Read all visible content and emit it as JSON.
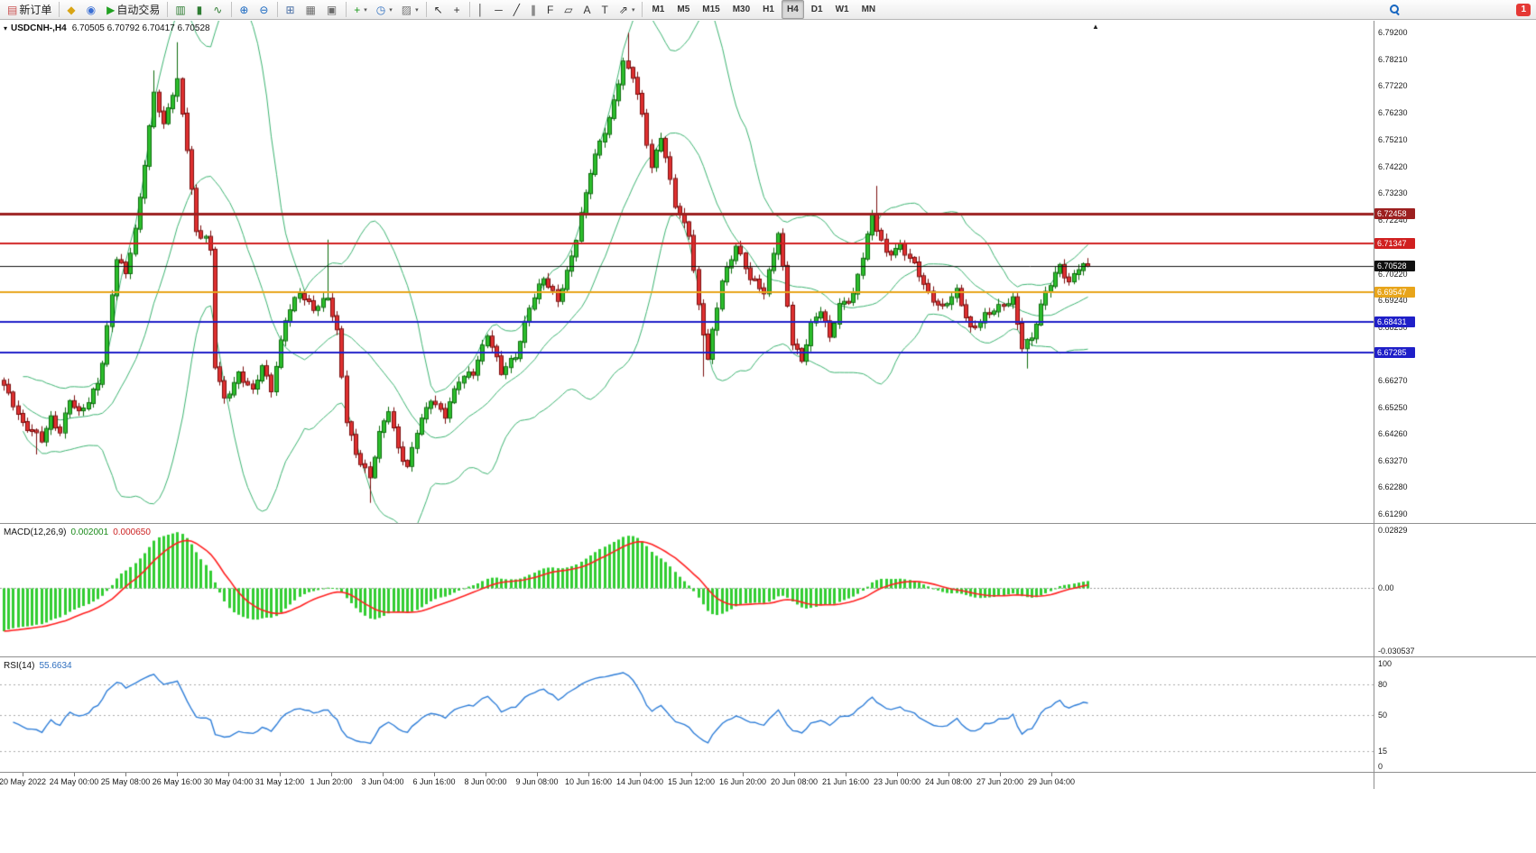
{
  "toolbar": {
    "groups": [
      {
        "items": [
          {
            "name": "new-order-button",
            "glyph": "▤",
            "glyph_color": "#c94f4f",
            "label": "新订单"
          }
        ]
      },
      {
        "items": [
          {
            "name": "one-click-trading-icon",
            "glyph": "◆",
            "glyph_color": "#d9a514"
          },
          {
            "name": "market-depth-icon",
            "glyph": "◉",
            "glyph_color": "#3b6fd4"
          },
          {
            "name": "autotrading-button",
            "glyph": "▶",
            "glyph_color": "#21a121",
            "label": "自动交易"
          }
        ]
      },
      {
        "items": [
          {
            "name": "bar-chart-icon",
            "glyph": "▥",
            "glyph_color": "#2e7d32"
          },
          {
            "name": "candlestick-chart-icon",
            "glyph": "▮",
            "glyph_color": "#2e7d32"
          },
          {
            "name": "line-chart-icon",
            "glyph": "∿",
            "glyph_color": "#2e7d32"
          }
        ]
      },
      {
        "items": [
          {
            "name": "zoom-in-icon",
            "glyph": "⊕",
            "glyph_color": "#1565c0"
          },
          {
            "name": "zoom-out-icon",
            "glyph": "⊖",
            "glyph_color": "#1565c0"
          }
        ]
      },
      {
        "items": [
          {
            "name": "tile-windows-icon",
            "glyph": "⊞",
            "glyph_color": "#4a6fa5"
          },
          {
            "name": "arrange-charts-icon",
            "glyph": "▦",
            "glyph_color": "#6a6a6a"
          },
          {
            "name": "auto-arrange-icon",
            "glyph": "▣",
            "glyph_color": "#6a6a6a"
          }
        ]
      },
      {
        "items": [
          {
            "name": "new-chart-button",
            "glyph": "+",
            "glyph_color": "#1d9a1d",
            "caret": true
          },
          {
            "name": "timeframe-selector-icon",
            "glyph": "◷",
            "glyph_color": "#2f6fbf",
            "caret": true
          },
          {
            "name": "template-icon",
            "glyph": "▨",
            "glyph_color": "#777777",
            "caret": true
          }
        ]
      },
      {
        "items": [
          {
            "name": "cursor-icon",
            "glyph": "↖",
            "glyph_color": "#333333"
          },
          {
            "name": "crosshair-icon",
            "glyph": "+",
            "glyph_color": "#333333"
          }
        ]
      },
      {
        "items": [
          {
            "name": "vertical-line-icon",
            "glyph": "│",
            "glyph_color": "#333333"
          },
          {
            "name": "horizontal-line-icon",
            "glyph": "─",
            "glyph_color": "#333333"
          },
          {
            "name": "trendline-icon",
            "glyph": "╱",
            "glyph_color": "#333333"
          },
          {
            "name": "equidistant-channel-icon",
            "glyph": "∥",
            "glyph_color": "#333333"
          },
          {
            "name": "fibonacci-icon",
            "glyph": "F",
            "glyph_color": "#333333"
          },
          {
            "name": "shapes-icon",
            "glyph": "▱",
            "glyph_color": "#333333"
          },
          {
            "name": "text-icon",
            "glyph": "A",
            "glyph_color": "#333333"
          },
          {
            "name": "text-label-icon",
            "glyph": "T",
            "glyph_color": "#333333"
          },
          {
            "name": "arrows-icon",
            "glyph": "⇗",
            "glyph_color": "#333333",
            "caret": true
          }
        ]
      },
      {
        "items": [
          {
            "name": "tf-m1",
            "label": "M1",
            "tf": true
          },
          {
            "name": "tf-m5",
            "label": "M5",
            "tf": true
          },
          {
            "name": "tf-m15",
            "label": "M15",
            "tf": true
          },
          {
            "name": "tf-m30",
            "label": "M30",
            "tf": true
          },
          {
            "name": "tf-h1",
            "label": "H1",
            "tf": true
          },
          {
            "name": "tf-h4",
            "label": "H4",
            "tf": true,
            "active": true
          },
          {
            "name": "tf-d1",
            "label": "D1",
            "tf": true
          },
          {
            "name": "tf-w1",
            "label": "W1",
            "tf": true
          },
          {
            "name": "tf-mn",
            "label": "MN",
            "tf": true
          }
        ]
      }
    ],
    "notification_count": "1"
  },
  "chart": {
    "title_symbol": "USDCNH-,H4",
    "title_ohlc": "6.70505 6.70792 6.70417 6.70528"
  },
  "chart_data": {
    "type": "candlestick",
    "symbol": "USDCNH-",
    "timeframe": "H4",
    "n_bars": 232,
    "last_close": 6.70528,
    "close_anchors": [
      [
        0,
        6.66
      ],
      [
        2,
        6.654
      ],
      [
        4,
        6.647
      ],
      [
        6,
        6.644
      ],
      [
        8,
        6.64
      ],
      [
        10,
        6.648
      ],
      [
        12,
        6.644
      ],
      [
        14,
        6.656
      ],
      [
        16,
        6.65
      ],
      [
        18,
        6.654
      ],
      [
        20,
        6.662
      ],
      [
        21,
        6.67
      ],
      [
        23,
        6.695
      ],
      [
        24,
        6.708
      ],
      [
        26,
        6.702
      ],
      [
        28,
        6.718
      ],
      [
        30,
        6.744
      ],
      [
        32,
        6.77
      ],
      [
        34,
        6.757
      ],
      [
        36,
        6.769
      ],
      [
        37,
        6.774
      ],
      [
        39,
        6.75
      ],
      [
        41,
        6.718
      ],
      [
        43,
        6.715
      ],
      [
        44,
        6.71
      ],
      [
        45,
        6.668
      ],
      [
        47,
        6.656
      ],
      [
        50,
        6.665
      ],
      [
        53,
        6.658
      ],
      [
        55,
        6.668
      ],
      [
        57,
        6.66
      ],
      [
        60,
        6.685
      ],
      [
        63,
        6.695
      ],
      [
        66,
        6.69
      ],
      [
        69,
        6.693
      ],
      [
        71,
        6.68
      ],
      [
        73,
        6.648
      ],
      [
        75,
        6.636
      ],
      [
        78,
        6.626
      ],
      [
        80,
        6.642
      ],
      [
        82,
        6.652
      ],
      [
        84,
        6.638
      ],
      [
        86,
        6.63
      ],
      [
        88,
        6.643
      ],
      [
        91,
        6.656
      ],
      [
        94,
        6.65
      ],
      [
        97,
        6.662
      ],
      [
        100,
        6.666
      ],
      [
        103,
        6.68
      ],
      [
        106,
        6.665
      ],
      [
        109,
        6.672
      ],
      [
        112,
        6.69
      ],
      [
        115,
        6.7
      ],
      [
        118,
        6.693
      ],
      [
        120,
        6.703
      ],
      [
        122,
        6.715
      ],
      [
        125,
        6.74
      ],
      [
        127,
        6.752
      ],
      [
        129,
        6.76
      ],
      [
        132,
        6.78
      ],
      [
        134,
        6.776
      ],
      [
        136,
        6.762
      ],
      [
        138,
        6.742
      ],
      [
        140,
        6.753
      ],
      [
        143,
        6.728
      ],
      [
        146,
        6.718
      ],
      [
        148,
        6.69
      ],
      [
        150,
        6.67
      ],
      [
        153,
        6.7
      ],
      [
        156,
        6.713
      ],
      [
        159,
        6.7
      ],
      [
        162,
        6.696
      ],
      [
        165,
        6.718
      ],
      [
        168,
        6.676
      ],
      [
        170,
        6.67
      ],
      [
        172,
        6.684
      ],
      [
        174,
        6.689
      ],
      [
        176,
        6.678
      ],
      [
        178,
        6.69
      ],
      [
        181,
        6.695
      ],
      [
        185,
        6.723
      ],
      [
        188,
        6.71
      ],
      [
        191,
        6.713
      ],
      [
        194,
        6.705
      ],
      [
        197,
        6.695
      ],
      [
        200,
        6.69
      ],
      [
        203,
        6.695
      ],
      [
        206,
        6.682
      ],
      [
        209,
        6.687
      ],
      [
        212,
        6.689
      ],
      [
        215,
        6.693
      ],
      [
        217,
        6.676
      ],
      [
        219,
        6.678
      ],
      [
        222,
        6.695
      ],
      [
        225,
        6.706
      ],
      [
        227,
        6.699
      ],
      [
        229,
        6.704
      ],
      [
        231,
        6.70528
      ]
    ],
    "wick_overrides": [
      {
        "i": 7,
        "l": 6.635
      },
      {
        "i": 32,
        "h": 6.778
      },
      {
        "i": 37,
        "h": 6.7885
      },
      {
        "i": 69,
        "h": 6.715
      },
      {
        "i": 78,
        "l": 6.617
      },
      {
        "i": 133,
        "h": 6.792
      },
      {
        "i": 149,
        "l": 6.664
      },
      {
        "i": 186,
        "h": 6.735
      },
      {
        "i": 218,
        "l": 6.667
      }
    ],
    "synth": {
      "wiggle": [
        [
          0.001,
          2.05,
          0.3
        ],
        [
          0.0007,
          0.71,
          1.9
        ]
      ],
      "wick_up": [
        0.0005,
        0.0018,
        1.31,
        0.4
      ],
      "wick_down": [
        0.0005,
        0.0018,
        0.93,
        1.9
      ],
      "macd_seed": [
        0.006,
        0.028
      ]
    },
    "price_axis": {
      "min": 6.6095,
      "max": 6.7965,
      "ticks": [
        "6.79200",
        "6.78210",
        "6.77220",
        "6.76230",
        "6.75210",
        "6.74220",
        "6.73230",
        "6.72240",
        "6.70220",
        "6.69240",
        "6.68250",
        "6.66270",
        "6.65250",
        "6.64260",
        "6.63270",
        "6.62280",
        "6.61290"
      ]
    },
    "h_lines": [
      {
        "label": "6.72458",
        "price": 6.72458,
        "color": "#9c1f1f",
        "width": 3
      },
      {
        "label": "6.71347",
        "price": 6.71347,
        "color": "#d02020",
        "width": 2
      },
      {
        "label": "6.70528",
        "price": 6.70528,
        "color": "#101010",
        "width": 1
      },
      {
        "label": "6.69547",
        "price": 6.69547,
        "color": "#e8a51b",
        "width": 2
      },
      {
        "label": "6.68431",
        "price": 6.68431,
        "color": "#1f1fc8",
        "width": 2
      },
      {
        "label": "6.67285",
        "price": 6.67285,
        "color": "#1f1fc8",
        "width": 2
      }
    ],
    "x_labels": [
      "20 May 2022",
      "24 May 00:00",
      "25 May 08:00",
      "26 May 16:00",
      "30 May 04:00",
      "31 May 12:00",
      "1 Jun 20:00",
      "3 Jun 04:00",
      "6 Jun 16:00",
      "8 Jun 00:00",
      "9 Jun 08:00",
      "10 Jun 16:00",
      "14 Jun 04:00",
      "15 Jun 12:00",
      "16 Jun 20:00",
      "20 Jun 08:00",
      "21 Jun 16:00",
      "23 Jun 00:00",
      "24 Jun 08:00",
      "27 Jun 20:00",
      "29 Jun 04:00"
    ],
    "indicators": {
      "bollinger": {
        "color": "#3cb371"
      },
      "macd": {
        "label": "MACD(12,26,9)",
        "value_main": "0.002001",
        "value_signal": "0.000650",
        "axis": [
          "0.02829",
          "0.00",
          "-0.030537"
        ],
        "range": [
          -0.0305,
          0.0283
        ],
        "hist_color": "#32cd32",
        "signal_color": "#ff2020"
      },
      "rsi": {
        "label": "RSI(14)",
        "value": "55.6634",
        "axis": [
          "100",
          "80",
          "50",
          "15",
          "0"
        ],
        "levels": [
          80,
          50,
          15
        ],
        "color": "#2f7ed8"
      }
    },
    "colors": {
      "up": "#2dbe2d",
      "up_border": "#0b6b0b",
      "down": "#e03030",
      "down_border": "#7a0c0c"
    }
  }
}
